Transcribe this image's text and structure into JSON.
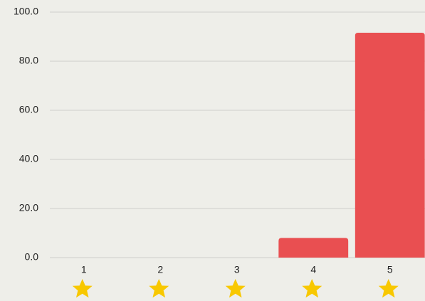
{
  "chart_data": {
    "type": "bar",
    "categories": [
      "1",
      "2",
      "3",
      "4",
      "5"
    ],
    "values": [
      0,
      0,
      0,
      8,
      91.6
    ],
    "color": "#e94f51",
    "ylim": [
      0,
      100
    ],
    "yticks": [
      {
        "value": 0,
        "label": "0.0"
      },
      {
        "value": 20,
        "label": "20.0"
      },
      {
        "value": 40,
        "label": "40.0"
      },
      {
        "value": 60,
        "label": "60.0"
      },
      {
        "value": 80,
        "label": "80.0"
      },
      {
        "value": 100,
        "label": "100.0"
      }
    ],
    "grid": true
  }
}
